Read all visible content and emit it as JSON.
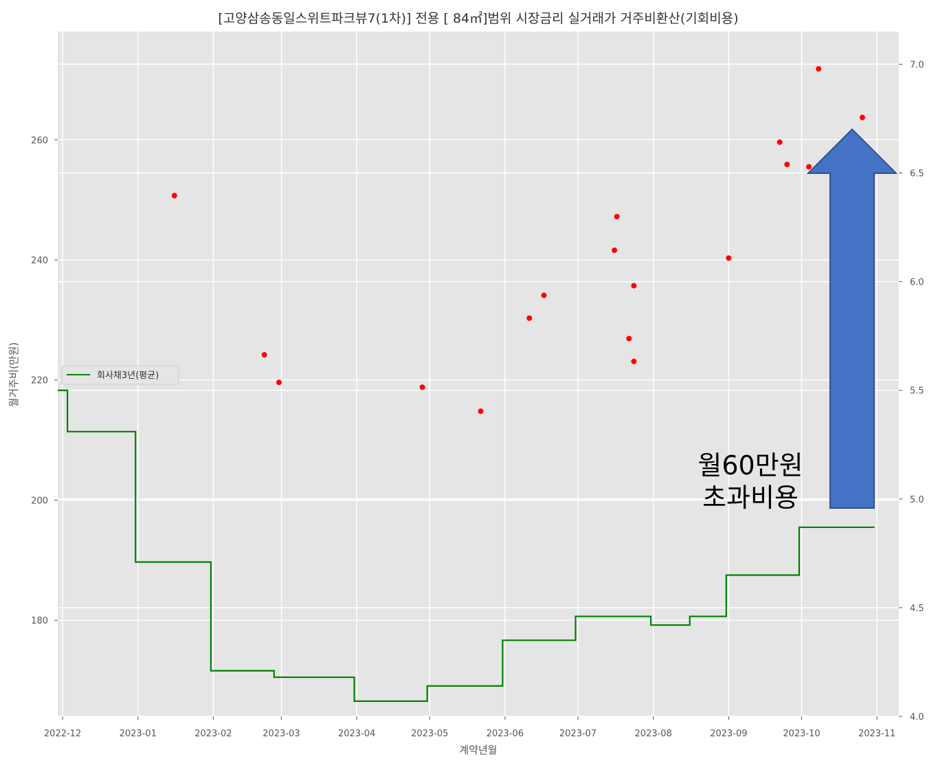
{
  "chart_data": {
    "type": "scatter",
    "title": "[고양삼송동일스위트파크뷰7(1차)] 전용 [ 84㎡]범위 시장금리 실거래가 거주비환산(기회비용)",
    "xlabel": "계약년월",
    "ylabel": "월거주비(만원)",
    "x_ticks": [
      "2022-12",
      "2023-01",
      "2023-02",
      "2023-03",
      "2023-04",
      "2023-05",
      "2023-06",
      "2023-07",
      "2023-08",
      "2023-09",
      "2023-10",
      "2023-11"
    ],
    "xlim": [
      "2022-11-29",
      "2023-11-10"
    ],
    "ylim": [
      164,
      278
    ],
    "y_ticks": [
      180,
      200,
      220,
      240,
      260
    ],
    "y2lim": [
      4.0,
      7.15
    ],
    "y2_ticks": [
      4.0,
      4.5,
      5.0,
      5.5,
      6.0,
      6.5,
      7.0
    ],
    "y2_tick_labels": [
      "4.0",
      "4.5",
      "5.0",
      "5.5",
      "6.0",
      "6.5",
      "7.0"
    ],
    "grid": true,
    "background": "#e5e5e5",
    "point_color": "#ff0000",
    "line_color": "#008000",
    "points": [
      {
        "x": "2023-01-16",
        "y": 250.7
      },
      {
        "x": "2023-02-22",
        "y": 224.2
      },
      {
        "x": "2023-02-28",
        "y": 219.6
      },
      {
        "x": "2023-04-28",
        "y": 218.8
      },
      {
        "x": "2023-05-22",
        "y": 214.8
      },
      {
        "x": "2023-06-11",
        "y": 230.3
      },
      {
        "x": "2023-06-17",
        "y": 234.1
      },
      {
        "x": "2023-07-16",
        "y": 241.6
      },
      {
        "x": "2023-07-17",
        "y": 247.2
      },
      {
        "x": "2023-07-22",
        "y": 226.9
      },
      {
        "x": "2023-07-24",
        "y": 235.7
      },
      {
        "x": "2023-07-24",
        "y": 223.1
      },
      {
        "x": "2023-09-01",
        "y": 240.3
      },
      {
        "x": "2023-09-22",
        "y": 259.6
      },
      {
        "x": "2023-09-25",
        "y": 255.9
      },
      {
        "x": "2023-10-04",
        "y": 255.5
      },
      {
        "x": "2023-10-08",
        "y": 271.8
      },
      {
        "x": "2023-10-26",
        "y": 263.7
      }
    ],
    "series": [
      {
        "name": "회사채3년(평균)",
        "axis": "right",
        "step": "post",
        "x": [
          "2022-11-29",
          "2022-12-03",
          "2022-12-31",
          "2023-01-31",
          "2023-02-26",
          "2023-03-31",
          "2023-04-30",
          "2023-05-31",
          "2023-06-30",
          "2023-07-31",
          "2023-08-16",
          "2023-08-31",
          "2023-09-30",
          "2023-10-31"
        ],
        "values": [
          5.5,
          5.31,
          4.71,
          4.21,
          4.18,
          4.07,
          4.14,
          4.35,
          4.46,
          4.42,
          4.46,
          4.65,
          4.87,
          4.87
        ]
      }
    ],
    "legend": {
      "position": "center-left"
    },
    "annotation": {
      "lines": [
        "월60만원",
        "초과비용"
      ],
      "arrow": "up",
      "arrow_color": "#4472c4",
      "arrow_border": "#2f528f"
    }
  }
}
